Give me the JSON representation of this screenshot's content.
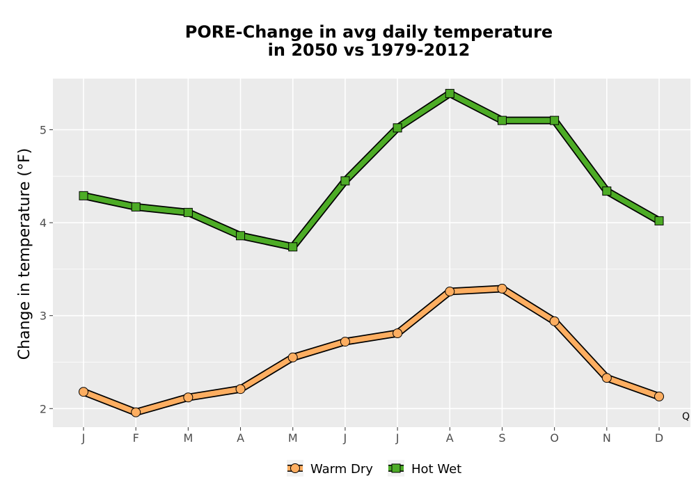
{
  "chart_data": {
    "type": "line",
    "title_lines": [
      "PORE-Change in avg daily temperature",
      "in 2050 vs 1979-2012"
    ],
    "xlabel": "",
    "ylabel": "Change in temperature (°F)",
    "categories": [
      "J",
      "F",
      "M",
      "A",
      "M",
      "J",
      "J",
      "A",
      "S",
      "O",
      "N",
      "D"
    ],
    "ylim": [
      1.8,
      5.55
    ],
    "yticks": [
      2,
      3,
      4,
      5
    ],
    "grid": true,
    "legend_position": "bottom",
    "corner_label": "Q",
    "series": [
      {
        "name": "Warm Dry",
        "marker": "circle",
        "color": "#FDAE61",
        "values": [
          2.18,
          1.96,
          2.12,
          2.21,
          2.55,
          2.72,
          2.81,
          3.26,
          3.29,
          2.94,
          2.33,
          2.13
        ]
      },
      {
        "name": "Hot Wet",
        "marker": "square",
        "color": "#4DAC26",
        "values": [
          4.29,
          4.17,
          4.11,
          3.86,
          3.74,
          4.45,
          5.02,
          5.39,
          5.1,
          5.1,
          4.34,
          4.02
        ]
      }
    ]
  },
  "colors": {
    "panel_background": "#EBEBEB",
    "grid": "#FFFFFF",
    "warm_dry": "#FDAE61",
    "hot_wet": "#4DAC26"
  }
}
